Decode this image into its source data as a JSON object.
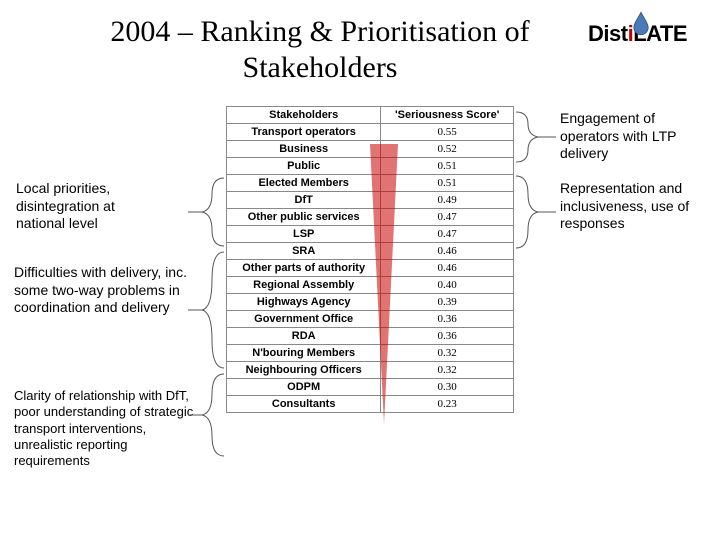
{
  "title": "2004 – Ranking & Prioritisation of Stakeholders",
  "logo": {
    "word": "DistiLATE"
  },
  "table": {
    "headers": {
      "col1": "Stakeholders",
      "col2": "'Seriousness Score'"
    },
    "rows": [
      {
        "stakeholder": "Transport operators",
        "score": "0.55"
      },
      {
        "stakeholder": "Business",
        "score": "0.52"
      },
      {
        "stakeholder": "Public",
        "score": "0.51"
      },
      {
        "stakeholder": "Elected Members",
        "score": "0.51"
      },
      {
        "stakeholder": "DfT",
        "score": "0.49"
      },
      {
        "stakeholder": "Other public services",
        "score": "0.47"
      },
      {
        "stakeholder": "LSP",
        "score": "0.47"
      },
      {
        "stakeholder": "SRA",
        "score": "0.46"
      },
      {
        "stakeholder": "Other parts of authority",
        "score": "0.46"
      },
      {
        "stakeholder": "Regional Assembly",
        "score": "0.40"
      },
      {
        "stakeholder": "Highways Agency",
        "score": "0.39"
      },
      {
        "stakeholder": "Government Office",
        "score": "0.36"
      },
      {
        "stakeholder": "RDA",
        "score": "0.36"
      },
      {
        "stakeholder": "N'bouring Members",
        "score": "0.32"
      },
      {
        "stakeholder": "Neighbouring Officers",
        "score": "0.32"
      },
      {
        "stakeholder": "ODPM",
        "score": "0.30"
      },
      {
        "stakeholder": "Consultants",
        "score": "0.23"
      }
    ]
  },
  "notes": {
    "engagement": "Engagement of operators with LTP delivery",
    "representation": "Representation and inclusiveness, use of responses",
    "local_priorities": "Local priorities, disintegration at national level",
    "difficulties": "Difficulties with delivery, inc. some two-way problems in coordination and delivery",
    "clarity": "Clarity of relationship with DfT, poor understanding of strategic transport interventions, unrealistic reporting requirements"
  },
  "colors": {
    "triangle": "#c00000",
    "logo_i": "#c00000",
    "border": "#888888"
  }
}
